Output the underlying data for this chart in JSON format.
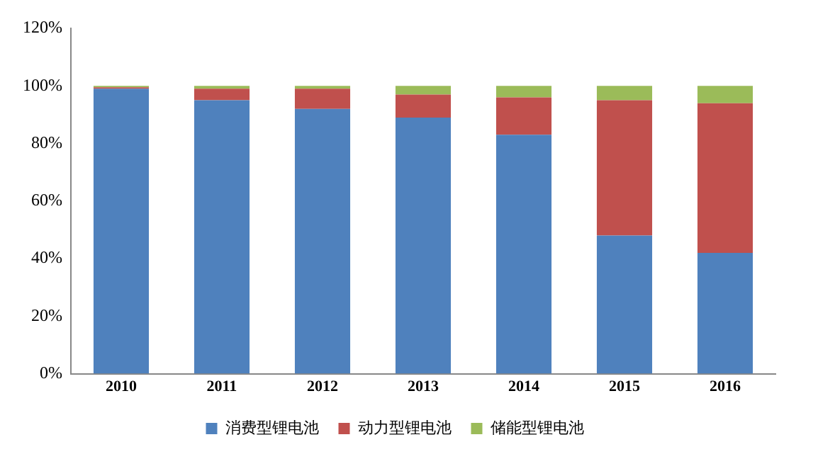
{
  "chart_data": {
    "type": "bar",
    "stacked": true,
    "categories": [
      "2010",
      "2011",
      "2012",
      "2013",
      "2014",
      "2015",
      "2016"
    ],
    "series": [
      {
        "name": "消费型锂电池",
        "color": "#4f81bd",
        "values": [
          99,
          95,
          92,
          89,
          83,
          48,
          42
        ]
      },
      {
        "name": "动力型锂电池",
        "color": "#c0504d",
        "values": [
          0.5,
          4,
          7,
          8,
          13,
          47,
          52
        ]
      },
      {
        "name": "储能型锂电池",
        "color": "#9bbb59",
        "values": [
          0.5,
          1,
          1,
          3,
          4,
          5,
          6
        ]
      }
    ],
    "ylim": [
      0,
      120
    ],
    "yticks": [
      {
        "value": 0,
        "label": "0%"
      },
      {
        "value": 20,
        "label": "20%"
      },
      {
        "value": 40,
        "label": "40%"
      },
      {
        "value": 60,
        "label": "60%"
      },
      {
        "value": 80,
        "label": "80%"
      },
      {
        "value": 100,
        "label": "100%"
      },
      {
        "value": 120,
        "label": "120%"
      }
    ],
    "grid": false,
    "legend": "bottom"
  }
}
